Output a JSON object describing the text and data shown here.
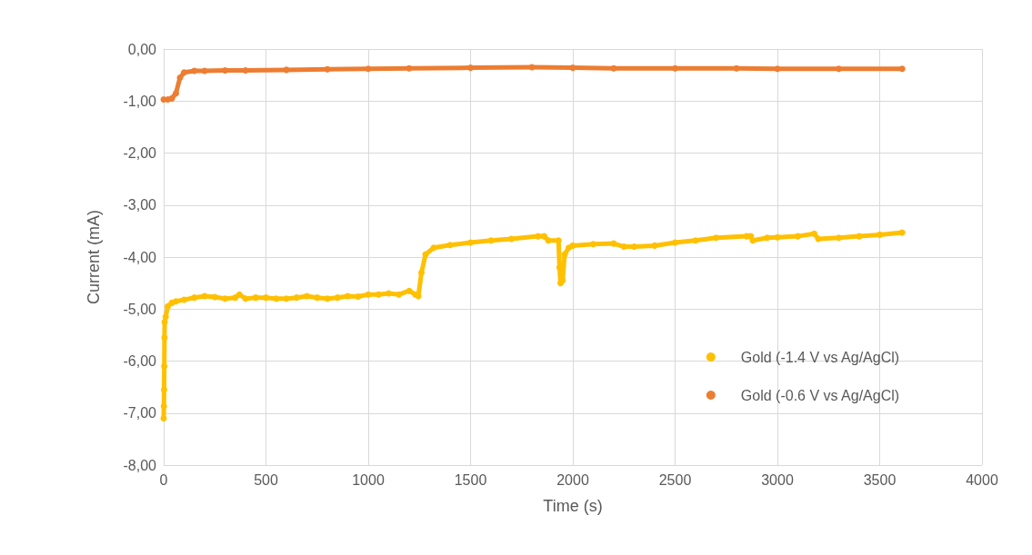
{
  "chart_data": {
    "type": "line",
    "xlabel": "Time (s)",
    "ylabel": "Current (mA)",
    "xlim": [
      0,
      4000
    ],
    "xticks": [
      0,
      500,
      1000,
      1500,
      2000,
      2500,
      3000,
      3500,
      4000
    ],
    "ylim": [
      -8,
      0
    ],
    "yticks": [
      {
        "value": -8,
        "label": "-8,00"
      },
      {
        "value": -7,
        "label": "-7,00"
      },
      {
        "value": -6,
        "label": "-6,00"
      },
      {
        "value": -5,
        "label": "-5,00"
      },
      {
        "value": -4,
        "label": "-4,00"
      },
      {
        "value": -3,
        "label": "-3,00"
      },
      {
        "value": -2,
        "label": "-2,00"
      },
      {
        "value": -1,
        "label": "-1,00"
      },
      {
        "value": 0,
        "label": "0,00"
      }
    ],
    "grid": true,
    "legend": "right",
    "marker": "circle",
    "line_style": "solid",
    "series": [
      {
        "name": "Gold (-1.4 V vs Ag/AgCl)",
        "color": "#ffc000",
        "x": [
          0,
          1,
          2,
          3,
          4,
          5,
          10,
          20,
          40,
          60,
          100,
          150,
          200,
          250,
          300,
          350,
          370,
          400,
          450,
          500,
          550,
          600,
          650,
          700,
          750,
          800,
          850,
          900,
          950,
          1000,
          1050,
          1100,
          1150,
          1200,
          1230,
          1245,
          1260,
          1280,
          1320,
          1400,
          1500,
          1600,
          1700,
          1830,
          1860,
          1880,
          1930,
          1935,
          1940,
          1950,
          1960,
          1980,
          2000,
          2100,
          2200,
          2250,
          2300,
          2400,
          2500,
          2600,
          2700,
          2850,
          2870,
          2880,
          2950,
          3000,
          3100,
          3180,
          3200,
          3300,
          3400,
          3500,
          3610
        ],
        "values": [
          -7.1,
          -6.87,
          -6.55,
          -6.1,
          -5.55,
          -5.25,
          -5.15,
          -4.95,
          -4.88,
          -4.85,
          -4.82,
          -4.78,
          -4.75,
          -4.77,
          -4.8,
          -4.78,
          -4.72,
          -4.8,
          -4.78,
          -4.78,
          -4.8,
          -4.8,
          -4.78,
          -4.75,
          -4.78,
          -4.8,
          -4.78,
          -4.75,
          -4.76,
          -4.72,
          -4.72,
          -4.7,
          -4.72,
          -4.65,
          -4.72,
          -4.75,
          -4.3,
          -3.95,
          -3.82,
          -3.77,
          -3.72,
          -3.68,
          -3.65,
          -3.6,
          -3.6,
          -3.68,
          -3.68,
          -4.2,
          -4.5,
          -4.45,
          -3.95,
          -3.82,
          -3.78,
          -3.75,
          -3.74,
          -3.8,
          -3.8,
          -3.78,
          -3.72,
          -3.68,
          -3.63,
          -3.6,
          -3.6,
          -3.68,
          -3.63,
          -3.62,
          -3.6,
          -3.55,
          -3.65,
          -3.63,
          -3.6,
          -3.57,
          -3.53
        ]
      },
      {
        "name": "Gold (-0.6 V vs Ag/AgCl)",
        "color": "#ed7d31",
        "x": [
          0,
          20,
          40,
          60,
          80,
          100,
          150,
          200,
          300,
          400,
          600,
          800,
          1000,
          1200,
          1500,
          1800,
          2000,
          2200,
          2500,
          2800,
          3000,
          3300,
          3610
        ],
        "values": [
          -0.97,
          -0.97,
          -0.95,
          -0.85,
          -0.55,
          -0.45,
          -0.42,
          -0.42,
          -0.41,
          -0.41,
          -0.4,
          -0.39,
          -0.38,
          -0.37,
          -0.36,
          -0.35,
          -0.36,
          -0.37,
          -0.37,
          -0.37,
          -0.38,
          -0.38,
          -0.38
        ]
      }
    ]
  }
}
